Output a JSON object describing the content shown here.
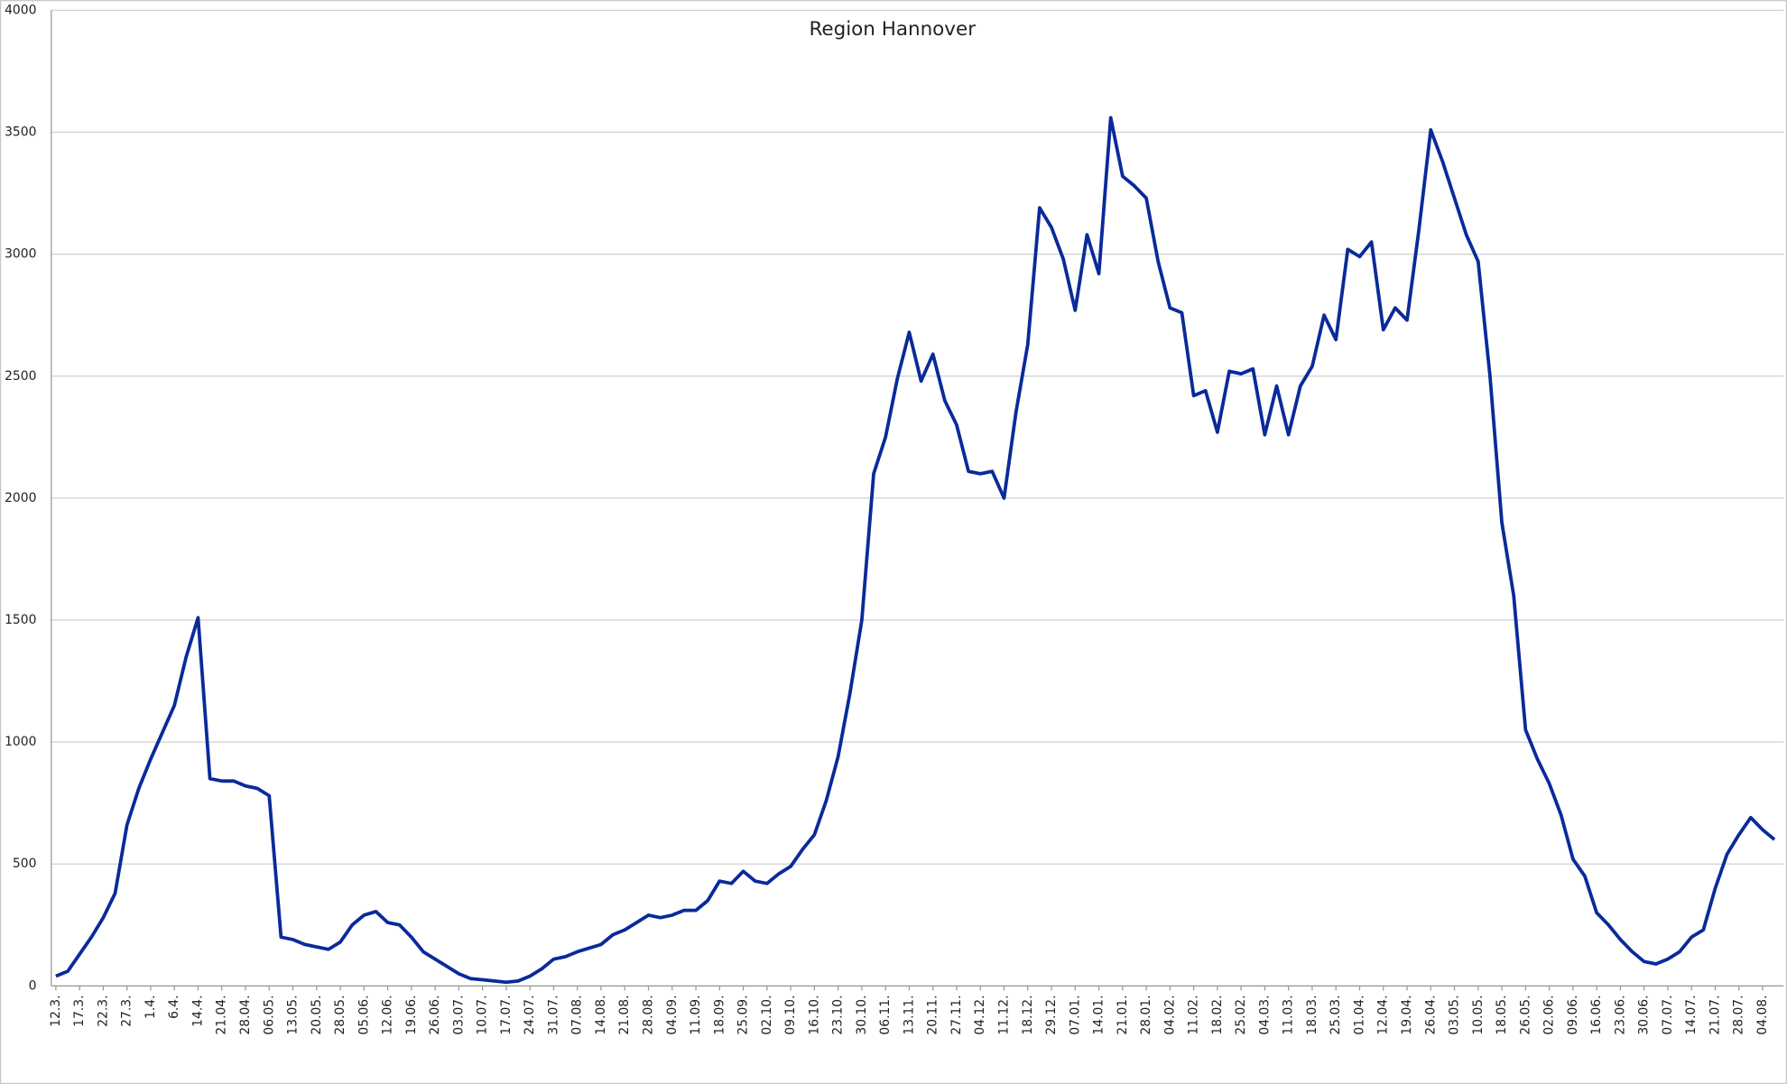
{
  "chart_data": {
    "type": "line",
    "title": "Region Hannover",
    "categories": [
      "12.3.",
      null,
      "17.3.",
      null,
      "22.3.",
      null,
      "27.3.",
      null,
      "1.4.",
      null,
      "6.4.",
      null,
      "14.4.",
      null,
      "21.04.",
      null,
      "28.04.",
      null,
      "06.05.",
      null,
      "13.05.",
      null,
      "20.05.",
      null,
      "28.05.",
      null,
      "05.06.",
      null,
      "12.06.",
      null,
      "19.06.",
      null,
      "26.06.",
      null,
      "03.07.",
      null,
      "10.07.",
      null,
      "17.07.",
      null,
      "24.07.",
      null,
      "31.07.",
      null,
      "07.08.",
      null,
      "14.08.",
      null,
      "21.08.",
      null,
      "28.08.",
      null,
      "04.09.",
      null,
      "11.09.",
      null,
      "18.09.",
      null,
      "25.09.",
      null,
      "02.10.",
      null,
      "09.10.",
      null,
      "16.10.",
      null,
      "23.10.",
      null,
      "30.10.",
      null,
      "06.11.",
      null,
      "13.11.",
      null,
      "20.11.",
      null,
      "27.11.",
      null,
      "04.12.",
      null,
      "11.12.",
      null,
      "18.12.",
      null,
      "29.12.",
      null,
      "07.01.",
      null,
      "14.01.",
      null,
      "21.01.",
      null,
      "28.01.",
      null,
      "04.02.",
      null,
      "11.02.",
      null,
      "18.02.",
      null,
      "25.02.",
      null,
      "04.03.",
      null,
      "11.03.",
      null,
      "18.03.",
      null,
      "25.03.",
      null,
      "01.04.",
      null,
      "12.04.",
      null,
      "19.04.",
      null,
      "26.04.",
      null,
      "03.05.",
      null,
      "10.05.",
      null,
      "18.05.",
      null,
      "26.05.",
      null,
      "02.06.",
      null,
      "09.06.",
      null,
      "16.06.",
      null,
      "23.06.",
      null,
      "30.06.",
      null,
      "07.07.",
      null,
      "14.07.",
      null,
      "21.07.",
      null,
      "28.07.",
      null,
      "04.08.",
      null
    ],
    "values": [
      40,
      60,
      130,
      200,
      280,
      380,
      660,
      810,
      930,
      1040,
      1150,
      1350,
      1510,
      850,
      840,
      840,
      820,
      810,
      780,
      200,
      190,
      170,
      160,
      150,
      180,
      250,
      290,
      305,
      260,
      250,
      200,
      140,
      110,
      80,
      50,
      30,
      25,
      20,
      15,
      20,
      40,
      70,
      110,
      120,
      140,
      155,
      170,
      210,
      230,
      260,
      290,
      280,
      290,
      310,
      310,
      350,
      430,
      420,
      470,
      430,
      420,
      460,
      490,
      560,
      620,
      760,
      940,
      1200,
      1500,
      2100,
      2250,
      2490,
      2680,
      2480,
      2590,
      2400,
      2300,
      2110,
      2100,
      2110,
      2000,
      2350,
      2630,
      3190,
      3110,
      2980,
      2770,
      3080,
      2920,
      3560,
      3320,
      3280,
      3230,
      2970,
      2780,
      2760,
      2420,
      2440,
      2270,
      2520,
      2510,
      2530,
      2260,
      2460,
      2260,
      2460,
      2540,
      2750,
      2650,
      3020,
      2990,
      3050,
      2690,
      2780,
      2730,
      3100,
      3510,
      3380,
      3230,
      3080,
      2970,
      2500,
      1900,
      1600,
      1050,
      930,
      830,
      700,
      520,
      450,
      300,
      250,
      190,
      140,
      100,
      90,
      110,
      140,
      200,
      230,
      400,
      540,
      620,
      690,
      640,
      600
    ],
    "color": "#0a2a9a",
    "ylim": [
      0,
      4000
    ],
    "yticks": [
      0,
      500,
      1000,
      1500,
      2000,
      2500,
      3000,
      3500,
      4000
    ],
    "grid": true
  }
}
